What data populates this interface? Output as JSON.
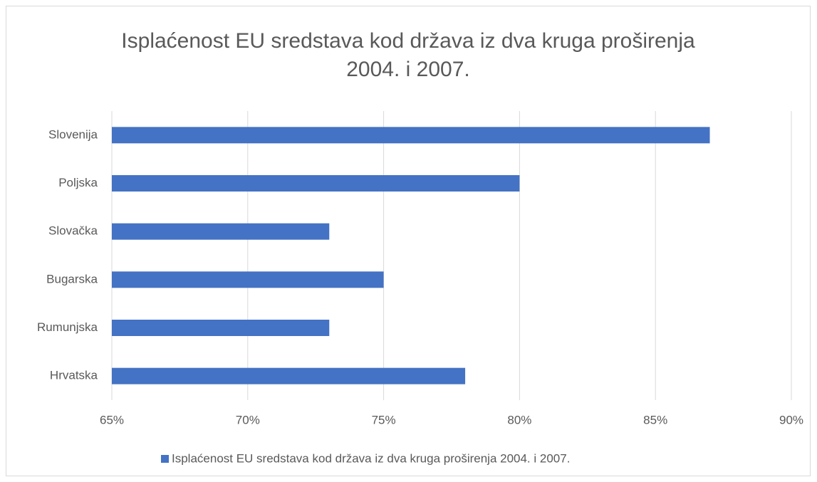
{
  "chart_data": {
    "type": "bar",
    "orientation": "horizontal",
    "title": "Isplaćenost EU sredstava kod država iz dva kruga proširenja 2004. i 2007.",
    "categories": [
      "Slovenija",
      "Poljska",
      "Slovačka",
      "Bugarska",
      "Rumunjska",
      "Hrvatska"
    ],
    "series": [
      {
        "name": "Isplaćenost EU sredstava kod država iz dva kruga proširenja 2004. i 2007.",
        "color": "#4472c4",
        "values": [
          87,
          80,
          73,
          75,
          73,
          78
        ]
      }
    ],
    "xlim": [
      65,
      90
    ],
    "xticks": [
      {
        "value": 65,
        "label": "65%"
      },
      {
        "value": 70,
        "label": "70%"
      },
      {
        "value": 75,
        "label": "75%"
      },
      {
        "value": 80,
        "label": "80%"
      },
      {
        "value": 85,
        "label": "85%"
      },
      {
        "value": 90,
        "label": "90%"
      }
    ],
    "grid": true,
    "legend": "bottom"
  }
}
